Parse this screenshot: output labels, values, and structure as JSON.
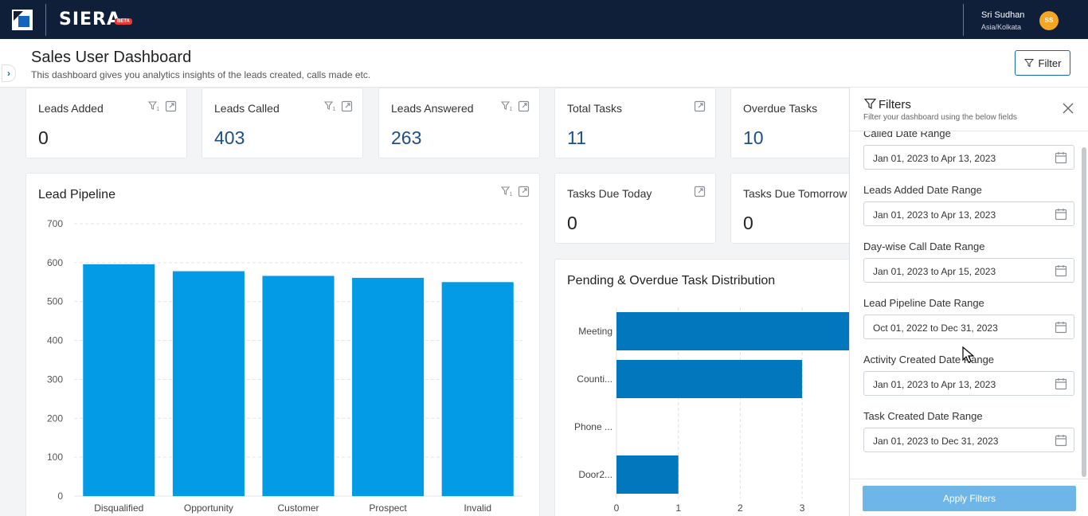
{
  "topbar": {
    "brand": "SIERA",
    "beta": "BETA",
    "user_name": "Sri Sudhan",
    "timezone": "Asia/Kolkata",
    "avatar_initials": "SS"
  },
  "header": {
    "title": "Sales User Dashboard",
    "subtitle": "This dashboard gives you analytics insights of the leads created, calls made etc.",
    "filter_button": "Filter"
  },
  "kpis": {
    "leads_added": {
      "title": "Leads Added",
      "value": "0"
    },
    "leads_called": {
      "title": "Leads Called",
      "value": "403"
    },
    "leads_answered": {
      "title": "Leads Answered",
      "value": "263"
    },
    "total_tasks": {
      "title": "Total Tasks",
      "value": "11"
    },
    "overdue_tasks": {
      "title": "Overdue Tasks",
      "value": "10"
    },
    "tasks_due_today": {
      "title": "Tasks Due Today",
      "value": "0"
    },
    "tasks_due_tomorrow": {
      "title": "Tasks Due Tomorrow",
      "value": "0"
    }
  },
  "panels": {
    "lead_pipeline": "Lead Pipeline",
    "task_distribution": "Pending & Overdue Task Distribution"
  },
  "chart_data": [
    {
      "type": "bar",
      "title": "Lead Pipeline",
      "categories": [
        "Disqualified",
        "Opportunity",
        "Customer",
        "Prospect",
        "Invalid"
      ],
      "values": [
        596,
        578,
        566,
        561,
        550
      ],
      "ylim": [
        0,
        700
      ],
      "yticks": [
        0,
        100,
        200,
        300,
        400,
        500,
        600,
        700
      ],
      "grid": true,
      "color": "#039be5"
    },
    {
      "type": "bar",
      "orientation": "horizontal",
      "title": "Pending & Overdue Task Distribution",
      "categories": [
        "Meeting",
        "Counti...",
        "Phone ...",
        "Door2..."
      ],
      "values": [
        4,
        3,
        0,
        1
      ],
      "xticks": [
        0,
        1,
        2,
        3
      ],
      "grid": true,
      "color": "#0277bd"
    }
  ],
  "filters": {
    "title": "Filters",
    "subtitle": "Filter your dashboard using the below fields",
    "fields": [
      {
        "label": "Called Date Range",
        "value": "Jan 01, 2023 to Apr 13, 2023"
      },
      {
        "label": "Leads Added Date Range",
        "value": "Jan 01, 2023 to Apr 13, 2023"
      },
      {
        "label": "Day-wise Call Date Range",
        "value": "Jan 01, 2023 to Apr 15, 2023"
      },
      {
        "label": "Lead Pipeline Date Range",
        "value": "Oct 01, 2022 to Dec 31, 2023"
      },
      {
        "label": "Activity Created Date Range",
        "value": "Jan 01, 2023 to Apr 13, 2023"
      },
      {
        "label": "Task Created Date Range",
        "value": "Jan 01, 2023 to Dec 31, 2023"
      }
    ],
    "apply_button": "Apply Filters"
  },
  "colors": {
    "topbar": "#0f1f3a",
    "accent": "#1565c0",
    "bar_vertical": "#039be5",
    "bar_horizontal": "#0277bd",
    "apply_button": "#6fb6e8"
  }
}
